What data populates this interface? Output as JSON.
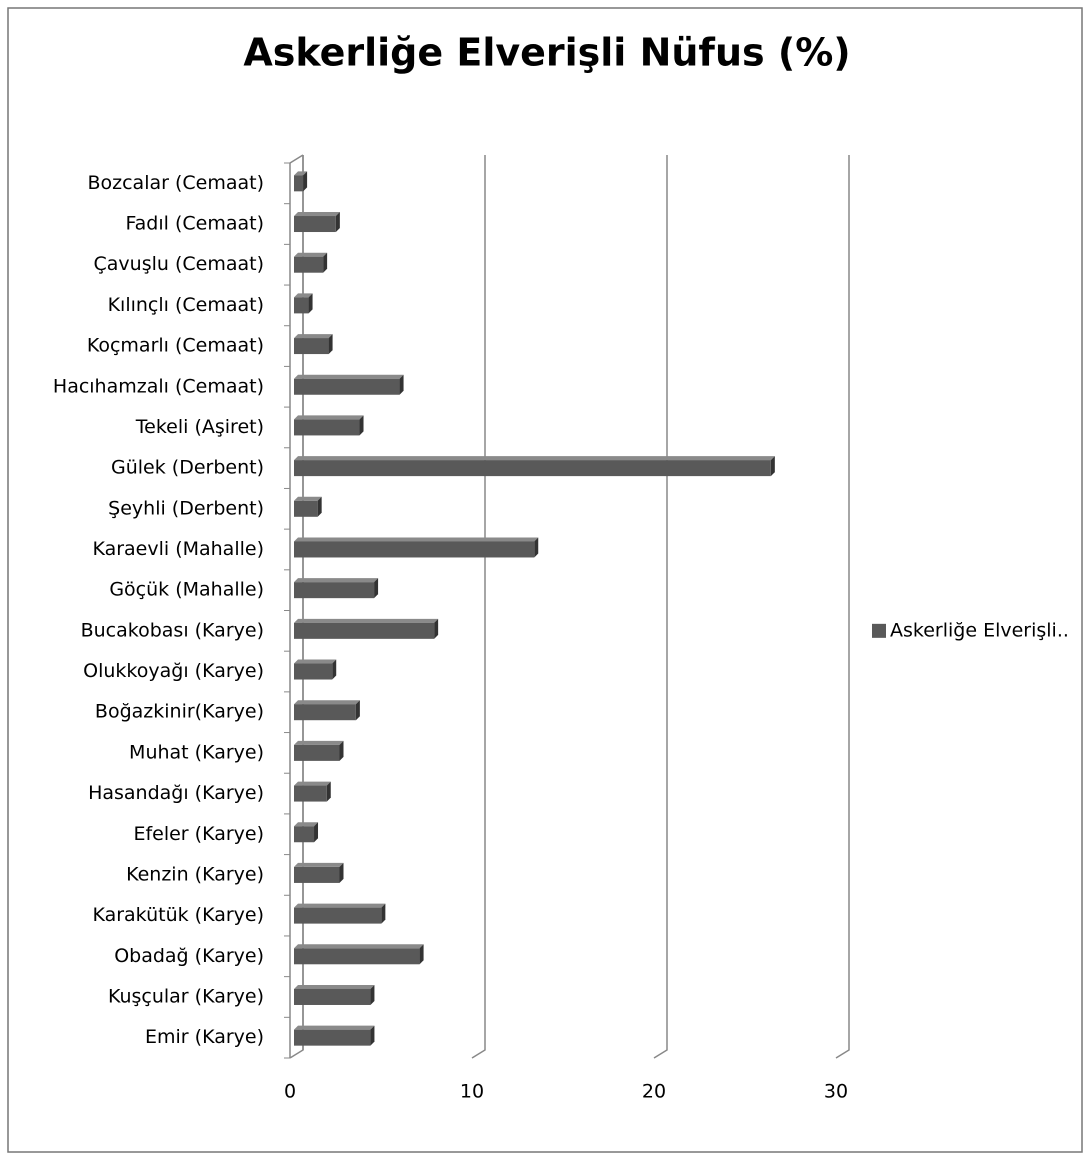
{
  "chart_data": {
    "type": "bar",
    "orientation": "horizontal",
    "title": "Askerliğe Elverişli Nüfus (%)",
    "categories": [
      "Bozcalar (Cemaat)",
      "Fadıl (Cemaat)",
      "Çavuşlu (Cemaat)",
      "Kılınçlı (Cemaat)",
      "Koçmarlı (Cemaat)",
      "Hacıhamzalı (Cemaat)",
      "Tekeli (Aşiret)",
      "Gülek (Derbent)",
      "Şeyhli (Derbent)",
      "Karaevli (Mahalle)",
      "Göçük (Mahalle)",
      "Bucakobası (Karye)",
      "Olukkoyağı (Karye)",
      "Boğazkinir(Karye)",
      "Muhat (Karye)",
      "Hasandağı (Karye)",
      "Efeler (Karye)",
      "Kenzin (Karye)",
      "Karakütük (Karye)",
      "Obadağ (Karye)",
      "Kuşçular (Karye)",
      "Emir (Karye)"
    ],
    "series": [
      {
        "name": "Askerliğe Elverişli..",
        "color": "#595959",
        "values": [
          0.5,
          2.3,
          1.6,
          0.8,
          1.9,
          5.8,
          3.6,
          26.2,
          1.3,
          13.2,
          4.4,
          7.7,
          2.1,
          3.4,
          2.5,
          1.8,
          1.1,
          2.5,
          4.8,
          6.9,
          4.2,
          4.2
        ]
      }
    ],
    "xlim": [
      0,
      30
    ],
    "xticks": [
      0,
      10,
      20,
      30
    ],
    "grid": true,
    "legend": "right"
  }
}
